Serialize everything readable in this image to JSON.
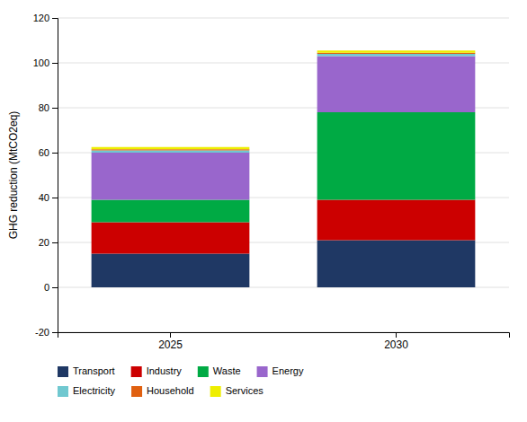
{
  "chart_data": {
    "type": "bar",
    "stacked": true,
    "categories": [
      "2025",
      "2030"
    ],
    "series": [
      {
        "name": "Transport",
        "color": "#1f3864",
        "values": [
          15,
          21
        ]
      },
      {
        "name": "Industry",
        "color": "#cc0000",
        "values": [
          14,
          18
        ]
      },
      {
        "name": "Waste",
        "color": "#00aa44",
        "values": [
          10,
          39
        ]
      },
      {
        "name": "Energy",
        "color": "#9966cc",
        "values": [
          21,
          25
        ]
      },
      {
        "name": "Electricity",
        "color": "#70c8d0",
        "values": [
          1,
          1
        ]
      },
      {
        "name": "Household",
        "color": "#e06010",
        "values": [
          0.5,
          0.5
        ]
      },
      {
        "name": "Services",
        "color": "#eeee00",
        "values": [
          1,
          1
        ]
      }
    ],
    "ylabel": "GHG reduction (MtCO2eq)",
    "ylim": [
      -20,
      120
    ],
    "yticks": [
      -20,
      0,
      20,
      40,
      60,
      80,
      100,
      120
    ],
    "grid": true,
    "legend": "bottom"
  }
}
